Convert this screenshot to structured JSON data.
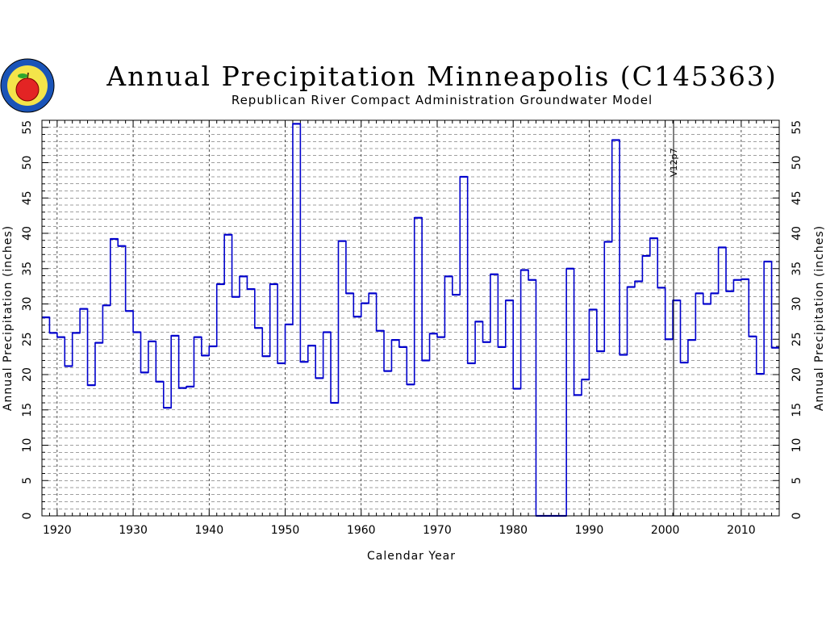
{
  "title": "Annual Precipitation Minneapolis (C145363)",
  "subtitle": "Republican River Compact Administration Groundwater Model",
  "logo": {
    "icon": "apple-logo-seal"
  },
  "colors": {
    "series": "#0000cc",
    "grid": "#000000",
    "background": "#ffffff"
  },
  "chart_data": {
    "type": "line",
    "step": true,
    "title": "Annual Precipitation Minneapolis (C145363)",
    "subtitle": "Republican River Compact Administration Groundwater Model",
    "xlabel": "Calendar Year",
    "ylabel": "Annual Precipitation (inches)",
    "ylabel_right": "Annual Precipitation (inches)",
    "xlim": [
      1918,
      2015
    ],
    "ylim": [
      0,
      56
    ],
    "x_ticks": [
      1920,
      1930,
      1940,
      1950,
      1960,
      1970,
      1980,
      1990,
      2000,
      2010
    ],
    "y_ticks": [
      0,
      5,
      10,
      15,
      20,
      25,
      30,
      35,
      40,
      45,
      50,
      55
    ],
    "grid": "on, dashed",
    "annotation": {
      "x": 2001,
      "label": "V12p7"
    },
    "series": [
      {
        "x": [
          1918,
          1919,
          1920,
          1921,
          1922,
          1923,
          1924,
          1925,
          1926,
          1927,
          1928,
          1929,
          1930,
          1931,
          1932,
          1933,
          1934,
          1935,
          1936,
          1937,
          1938,
          1939,
          1940,
          1941,
          1942,
          1943,
          1944,
          1945,
          1946,
          1947,
          1948,
          1949,
          1950,
          1951,
          1952,
          1953,
          1954,
          1955,
          1956,
          1957,
          1958,
          1959,
          1960,
          1961,
          1962,
          1963,
          1964,
          1965,
          1966,
          1967,
          1968,
          1969,
          1970,
          1971,
          1972,
          1973,
          1974,
          1975,
          1976,
          1977,
          1978,
          1979,
          1980,
          1981,
          1982,
          1983,
          1984,
          1985,
          1986,
          1987,
          1988,
          1989,
          1990,
          1991,
          1992,
          1993,
          1994,
          1995,
          1996,
          1997,
          1998,
          1999,
          2000,
          2001,
          2002,
          2003,
          2004,
          2005,
          2006,
          2007,
          2008,
          2009,
          2010,
          2011,
          2012,
          2013,
          2014
        ],
        "values": [
          28.1,
          25.9,
          25.3,
          21.2,
          25.9,
          29.3,
          18.5,
          24.5,
          29.8,
          39.2,
          38.2,
          29.0,
          26.0,
          20.3,
          24.7,
          19.0,
          15.3,
          25.5,
          18.1,
          18.3,
          25.3,
          22.7,
          24.0,
          32.8,
          39.8,
          31.0,
          33.9,
          32.1,
          26.6,
          22.6,
          32.8,
          21.6,
          27.1,
          55.5,
          21.8,
          24.1,
          19.5,
          26.0,
          16.0,
          38.9,
          31.5,
          28.2,
          30.1,
          31.5,
          26.2,
          20.5,
          24.9,
          23.9,
          18.6,
          42.2,
          22.0,
          25.8,
          25.3,
          33.9,
          31.3,
          48.0,
          21.6,
          27.5,
          24.6,
          34.2,
          23.9,
          30.5,
          18.0,
          34.8,
          33.4,
          0.0,
          0.0,
          0.0,
          0.0,
          35.0,
          17.1,
          19.3,
          29.2,
          23.3,
          38.8,
          53.2,
          22.8,
          32.4,
          33.2,
          36.8,
          39.3,
          32.3,
          25.0,
          30.5,
          21.7,
          24.9,
          31.5,
          30.0,
          31.5,
          38.0,
          31.8,
          33.4,
          33.5,
          25.4,
          20.1,
          36.0,
          23.8
        ]
      }
    ]
  }
}
